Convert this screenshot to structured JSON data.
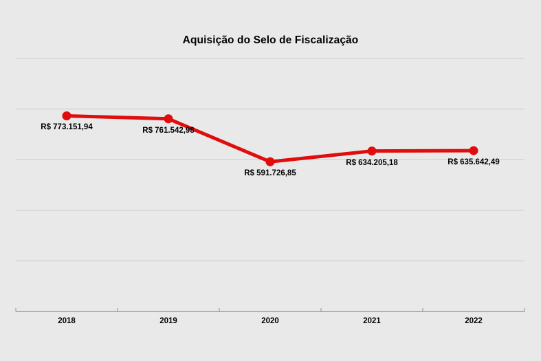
{
  "chart_data": {
    "type": "line",
    "title": "Aquisição do Selo de Fiscalização",
    "categories": [
      "2018",
      "2019",
      "2020",
      "2021",
      "2022"
    ],
    "series": [
      {
        "name": "Aquisição do Selo de Fiscalização",
        "values": [
          773151.94,
          761542.98,
          591726.85,
          634205.18,
          635642.49
        ],
        "labels": [
          "R$ 773.151,94",
          "R$ 761.542,98",
          "R$ 591.726,85",
          "R$ 634.205,18",
          "R$ 635.642,49"
        ]
      }
    ],
    "xlabel": "",
    "ylabel": "",
    "ylim": [
      0,
      1000000
    ],
    "gridline_step": 200000,
    "grid": true,
    "y_axis_labels_visible": false,
    "legend": "none",
    "colors": {
      "series": "#e00d0d",
      "background": "#e9e9e9",
      "gridline": "#c9c9c9",
      "axis": "#8f8f8f",
      "text": "#000000"
    }
  }
}
